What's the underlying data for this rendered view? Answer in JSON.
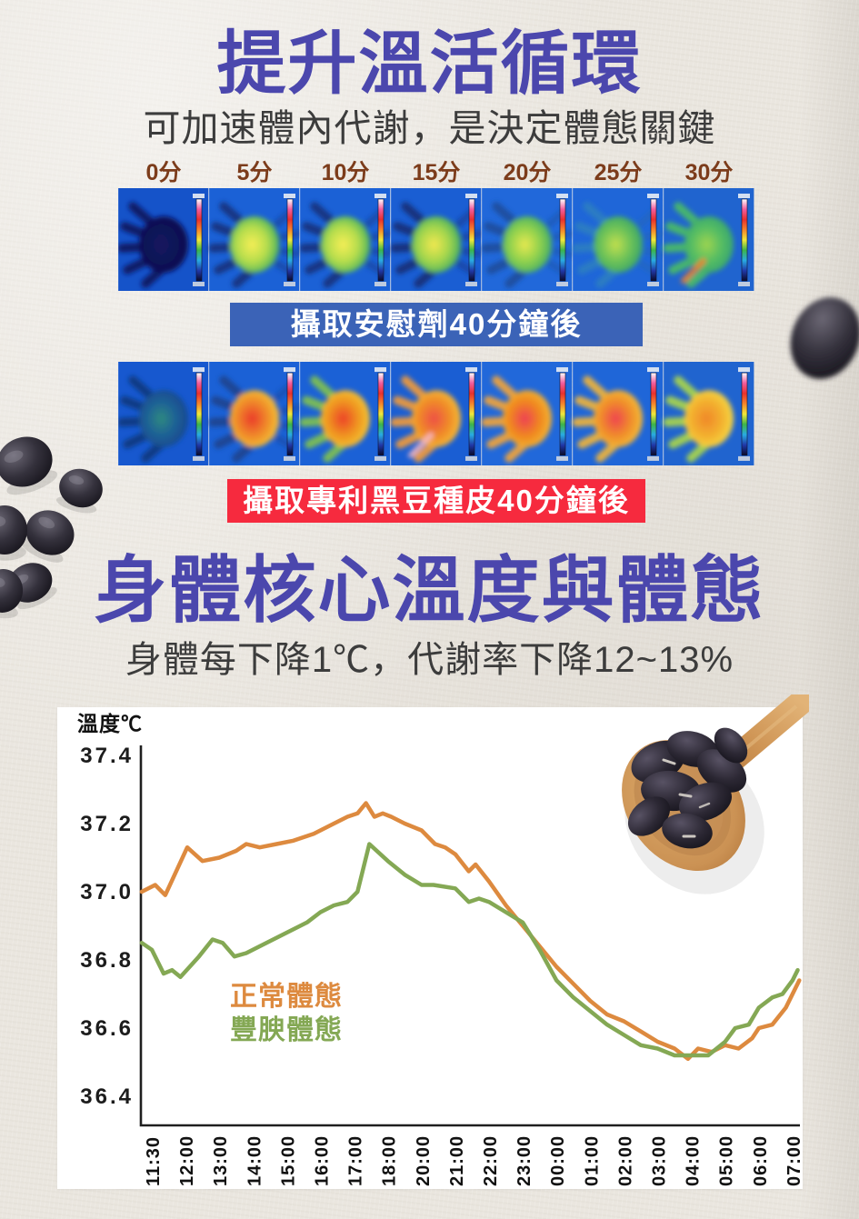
{
  "header": {
    "title": "提升溫活循環",
    "subtitle": "可加速體內代謝，是決定體態關鍵",
    "title_color": "#4b47ad",
    "subtitle_color": "#3c3c3c"
  },
  "thermal_timeline": {
    "time_labels": [
      "0分",
      "5分",
      "10分",
      "15分",
      "20分",
      "25分",
      "30分"
    ],
    "time_label_color": "#7c3c1b",
    "scale_stops": [
      "#ffffff",
      "#f25c9e",
      "#e8312f",
      "#f5852c",
      "#f0e83c",
      "#3db54a",
      "#29abe2",
      "#2038a8",
      "#0a0a28"
    ],
    "strips": [
      {
        "id": "placebo",
        "image_desc": "thermal-camera-hand-sequence-cool",
        "caption": "攝取安慰劑40分鐘後",
        "caption_bg": "#3b63b7",
        "caption_color": "#ffffff",
        "panels": [
          {
            "bg": "#1553c9",
            "core": "#12135f",
            "mid": "#111257",
            "edge": "#0d0f4c",
            "fingers": "#12135f"
          },
          {
            "bg": "#1b61d6",
            "core": "#f6ee55",
            "mid": "#b5dd4d",
            "edge": "#2fa761",
            "fingers": "#16337f",
            "ghost": "#16337f"
          },
          {
            "bg": "#1b61d6",
            "core": "#f6ee55",
            "mid": "#b5dd4d",
            "edge": "#2fa761",
            "fingers": "#16337f",
            "ghost": "#16337f"
          },
          {
            "bg": "#1a5ed3",
            "core": "#f2e850",
            "mid": "#a3d64d",
            "edge": "#2ca365",
            "fingers": "#14307a",
            "ghost": "#14307a"
          },
          {
            "bg": "#2168da",
            "core": "#e7e94f",
            "mid": "#8fd14e",
            "edge": "#2fa36b",
            "fingers": "#1d4f9e",
            "ghost": "#1d4f9e"
          },
          {
            "bg": "#1f66d8",
            "core": "#c2df4e",
            "mid": "#6cc258",
            "edge": "#2b9c6e",
            "fingers": "#2e7ec2",
            "ghost": "#2565b0"
          },
          {
            "bg": "#2064cf",
            "core": "#9ed44f",
            "mid": "#55bd63",
            "edge": "#2f9e74",
            "fingers": "#49b96a",
            "accent": "#f07f2a"
          }
        ]
      },
      {
        "id": "blackbean",
        "image_desc": "thermal-camera-hand-sequence-warm",
        "caption": "攝取專利黑豆種皮40分鐘後",
        "caption_bg": "#f62a3e",
        "caption_color": "#ffffff",
        "panels": [
          {
            "bg": "#1758cf",
            "core": "#2f8a80",
            "mid": "#1d6096",
            "edge": "#16418c",
            "fingers": "#123a80"
          },
          {
            "bg": "#1b61d6",
            "core": "#ea3a2d",
            "mid": "#f08a28",
            "edge": "#f3d23c",
            "fingers": "#1d4490",
            "ghost": "#1d4490"
          },
          {
            "bg": "#1b61d6",
            "core": "#ec422a",
            "mid": "#f0951f",
            "edge": "#f3d23c",
            "fingers": "#7fc052"
          },
          {
            "bg": "#1a5ed3",
            "core": "#ee4f46",
            "mid": "#f08a28",
            "edge": "#f5c93a",
            "fingers": "#ef9a3c",
            "accent": "#f7b9c4"
          },
          {
            "bg": "#2168da",
            "core": "#ee4055",
            "mid": "#f0871f",
            "edge": "#f3c238",
            "fingers": "#f0a43c"
          },
          {
            "bg": "#1f66d8",
            "core": "#ef4350",
            "mid": "#f08d2a",
            "edge": "#f5c93a",
            "fingers": "#eeb43e"
          },
          {
            "bg": "#2064cf",
            "core": "#f0872b",
            "mid": "#f3b02e",
            "edge": "#f5e34a",
            "fingers": "#a8d44e"
          }
        ]
      }
    ]
  },
  "core_temp_header": {
    "title": "身體核心溫度與體態",
    "subtitle": "身體每下降1℃，代謝率下降12~13%"
  },
  "chart_data": {
    "type": "line",
    "y_axis_label": "溫度℃",
    "y_ticks": [
      37.4,
      37.2,
      37.0,
      36.8,
      36.6,
      36.4
    ],
    "ylim": [
      36.4,
      37.4
    ],
    "grid": false,
    "legend_position": "inside-left",
    "x_labels": [
      "11:30",
      "12:00",
      "13:00",
      "14:00",
      "15:00",
      "16:00",
      "17:00",
      "18:00",
      "20:00",
      "21:00",
      "22:00",
      "23:00",
      "00:00",
      "01:00",
      "02:00",
      "03:00",
      "04:00",
      "05:00",
      "06:00",
      "07:00"
    ],
    "series": [
      {
        "name": "正常體態",
        "color": "#dd8a3f",
        "points": [
          [
            -0.3,
            37.0
          ],
          [
            0.1,
            37.02
          ],
          [
            0.4,
            36.99
          ],
          [
            1.05,
            37.13
          ],
          [
            1.5,
            37.09
          ],
          [
            2.0,
            37.1
          ],
          [
            2.5,
            37.12
          ],
          [
            2.8,
            37.14
          ],
          [
            3.2,
            37.13
          ],
          [
            3.7,
            37.14
          ],
          [
            4.2,
            37.15
          ],
          [
            4.8,
            37.17
          ],
          [
            5.4,
            37.2
          ],
          [
            5.8,
            37.22
          ],
          [
            6.1,
            37.23
          ],
          [
            6.35,
            37.26
          ],
          [
            6.6,
            37.22
          ],
          [
            6.85,
            37.23
          ],
          [
            7.1,
            37.22
          ],
          [
            7.5,
            37.2
          ],
          [
            8.0,
            37.18
          ],
          [
            8.4,
            37.14
          ],
          [
            8.7,
            37.13
          ],
          [
            9.0,
            37.11
          ],
          [
            9.4,
            37.06
          ],
          [
            9.6,
            37.08
          ],
          [
            10.0,
            37.03
          ],
          [
            10.5,
            36.96
          ],
          [
            11.0,
            36.9
          ],
          [
            11.5,
            36.84
          ],
          [
            12.0,
            36.78
          ],
          [
            12.5,
            36.73
          ],
          [
            13.0,
            36.68
          ],
          [
            13.5,
            36.64
          ],
          [
            14.0,
            36.62
          ],
          [
            14.5,
            36.59
          ],
          [
            15.0,
            36.56
          ],
          [
            15.5,
            36.54
          ],
          [
            15.9,
            36.51
          ],
          [
            16.2,
            36.54
          ],
          [
            16.6,
            36.53
          ],
          [
            17.0,
            36.55
          ],
          [
            17.4,
            36.54
          ],
          [
            17.8,
            36.57
          ],
          [
            18.0,
            36.6
          ],
          [
            18.4,
            36.61
          ],
          [
            18.8,
            36.66
          ],
          [
            19.0,
            36.7
          ],
          [
            19.2,
            36.74
          ]
        ]
      },
      {
        "name": "豐腴體態",
        "color": "#84a854",
        "points": [
          [
            -0.3,
            36.85
          ],
          [
            0.0,
            36.83
          ],
          [
            0.35,
            36.76
          ],
          [
            0.6,
            36.77
          ],
          [
            0.85,
            36.75
          ],
          [
            1.4,
            36.81
          ],
          [
            1.8,
            36.86
          ],
          [
            2.1,
            36.85
          ],
          [
            2.45,
            36.81
          ],
          [
            2.8,
            36.82
          ],
          [
            3.2,
            36.84
          ],
          [
            4.0,
            36.88
          ],
          [
            4.6,
            36.91
          ],
          [
            5.0,
            36.94
          ],
          [
            5.4,
            36.96
          ],
          [
            5.8,
            36.97
          ],
          [
            6.1,
            37.0
          ],
          [
            6.45,
            37.14
          ],
          [
            7.0,
            37.09
          ],
          [
            7.5,
            37.05
          ],
          [
            8.0,
            37.02
          ],
          [
            8.35,
            37.02
          ],
          [
            9.0,
            37.01
          ],
          [
            9.4,
            36.97
          ],
          [
            9.7,
            36.98
          ],
          [
            10.0,
            36.97
          ],
          [
            10.5,
            36.94
          ],
          [
            11.0,
            36.91
          ],
          [
            11.5,
            36.83
          ],
          [
            12.0,
            36.74
          ],
          [
            12.5,
            36.69
          ],
          [
            13.0,
            36.65
          ],
          [
            13.5,
            36.61
          ],
          [
            14.0,
            36.58
          ],
          [
            14.5,
            36.55
          ],
          [
            15.0,
            36.54
          ],
          [
            15.5,
            36.52
          ],
          [
            16.0,
            36.52
          ],
          [
            16.5,
            36.52
          ],
          [
            17.0,
            36.56
          ],
          [
            17.3,
            36.6
          ],
          [
            17.7,
            36.61
          ],
          [
            18.0,
            36.66
          ],
          [
            18.4,
            36.69
          ],
          [
            18.7,
            36.7
          ],
          [
            19.0,
            36.74
          ],
          [
            19.15,
            36.77
          ]
        ]
      }
    ],
    "title": "身體核心溫度與體態",
    "xlabel": "",
    "ylabel": "溫度℃"
  },
  "decor": {
    "black_beans": "black-soybeans-photo",
    "spoon": "wooden-spoon-with-black-beans-photo",
    "bean_core": "#6b6774",
    "bean_mid": "#34313c",
    "bean_edge": "#121017"
  }
}
